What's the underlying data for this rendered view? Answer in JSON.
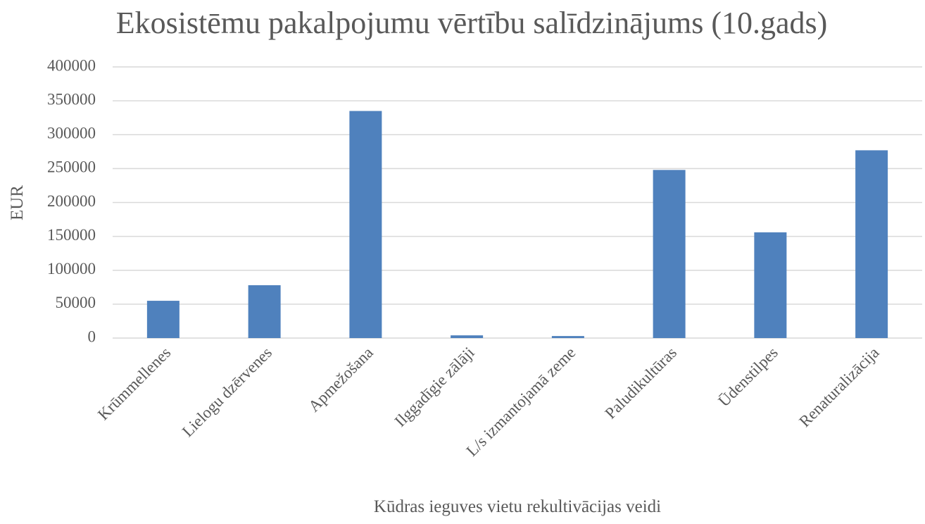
{
  "chart_data": {
    "type": "bar",
    "title": "Ekosistēmu pakalpojumu vērtību salīdzinājums (10.gads)",
    "x_label": "Kūdras ieguves vietu rekultivācijas veidi",
    "y_label": "EUR",
    "categories": [
      "Krūmmellenes",
      "Lielogu dzērvenes",
      "Apmežošana",
      "Ilggadīgie zālāji",
      "L/s izmantojamā zeme",
      "Paludikultūras",
      "Ūdenstilpes",
      "Renaturalizācija"
    ],
    "values": [
      55000,
      78000,
      335000,
      4000,
      3000,
      248000,
      156000,
      277000
    ],
    "color": "#4f81bd",
    "ylim": [
      0,
      400000
    ],
    "yticks": [
      0,
      50000,
      100000,
      150000,
      200000,
      250000,
      300000,
      350000,
      400000
    ],
    "grid": true
  }
}
